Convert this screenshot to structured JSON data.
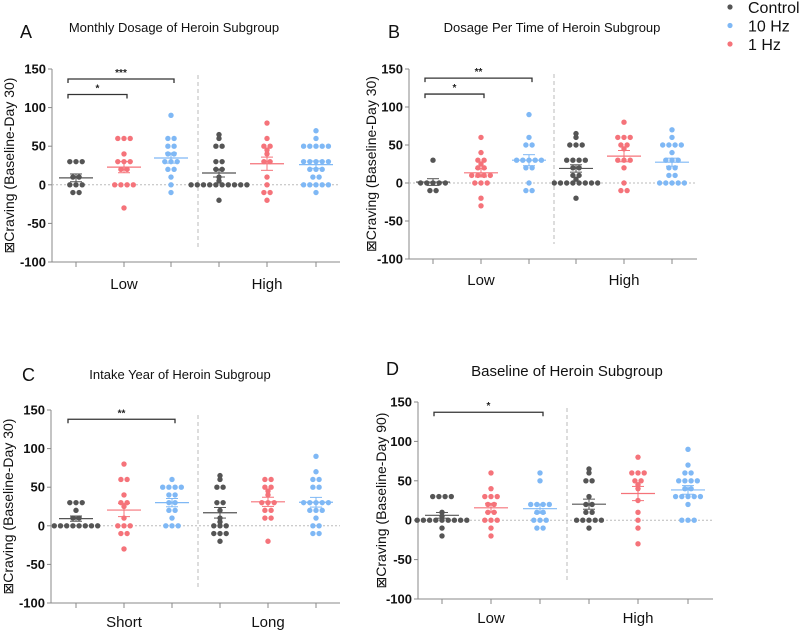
{
  "legend": [
    {
      "label": "Control",
      "color": "#555555"
    },
    {
      "label": "10 Hz",
      "color": "#7fb8f5"
    },
    {
      "label": "1 Hz",
      "color": "#f5737a"
    }
  ],
  "group_colors": {
    "Control": "#555555",
    "1 Hz": "#f5737a",
    "10 Hz": "#7fb8f5"
  },
  "chart_data": [
    {
      "type": "scatter",
      "letter": "A",
      "title": "Monthly Dosage of Heroin Subgroup",
      "ylabel": "⊠Craving (Baseline-Day 30)",
      "ylim": [
        -100,
        150
      ],
      "yticks": [
        "150",
        "100",
        "50",
        "0",
        "-50",
        "-100"
      ],
      "categories": [
        "Low",
        "High"
      ],
      "groups": [
        {
          "category": "Low",
          "series": "Control",
          "values": [
            30,
            30,
            30,
            10,
            10,
            0,
            0,
            0,
            -10,
            -10
          ]
        },
        {
          "category": "Low",
          "series": "1 Hz",
          "values": [
            60,
            60,
            60,
            40,
            30,
            30,
            30,
            20,
            20,
            0,
            0,
            0,
            0,
            -30
          ]
        },
        {
          "category": "Low",
          "series": "10 Hz",
          "values": [
            90,
            60,
            60,
            50,
            50,
            40,
            40,
            30,
            30,
            30,
            20,
            20,
            10,
            0,
            -10
          ]
        },
        {
          "category": "High",
          "series": "Control",
          "values": [
            65,
            60,
            50,
            50,
            30,
            30,
            20,
            20,
            10,
            5,
            0,
            0,
            0,
            0,
            0,
            0,
            0,
            0,
            0,
            0,
            -20
          ]
        },
        {
          "category": "High",
          "series": "1 Hz",
          "values": [
            80,
            60,
            50,
            50,
            45,
            40,
            30,
            30,
            10,
            0,
            -10,
            -10,
            -20
          ]
        },
        {
          "category": "High",
          "series": "10 Hz",
          "values": [
            70,
            60,
            50,
            50,
            50,
            50,
            50,
            30,
            30,
            30,
            30,
            30,
            20,
            20,
            20,
            10,
            10,
            0,
            0,
            0,
            0,
            0,
            -10
          ]
        }
      ],
      "significance": [
        {
          "from": 0,
          "to": 2,
          "y": 137,
          "label": "***"
        },
        {
          "from": 0,
          "to": 1,
          "y": 117,
          "label": "*"
        }
      ]
    },
    {
      "type": "scatter",
      "letter": "B",
      "title": "Dosage Per Time of Heroin Subgroup",
      "ylabel": "⊠Craving (Baseline-Day 30)",
      "ylim": [
        -100,
        150
      ],
      "yticks": [
        "150",
        "100",
        "50",
        "0",
        "-50",
        "-100"
      ],
      "categories": [
        "Low",
        "High"
      ],
      "groups": [
        {
          "category": "Low",
          "series": "Control",
          "values": [
            30,
            0,
            0,
            0,
            0,
            0,
            -10,
            -10
          ]
        },
        {
          "category": "Low",
          "series": "1 Hz",
          "values": [
            60,
            40,
            30,
            30,
            25,
            20,
            20,
            10,
            10,
            10,
            10,
            0,
            0,
            0,
            -20,
            -30
          ]
        },
        {
          "category": "Low",
          "series": "10 Hz",
          "values": [
            90,
            60,
            50,
            50,
            30,
            30,
            30,
            30,
            30,
            20,
            20,
            0,
            -10,
            -10
          ]
        },
        {
          "category": "High",
          "series": "Control",
          "values": [
            65,
            60,
            50,
            50,
            50,
            30,
            30,
            30,
            30,
            20,
            20,
            10,
            10,
            5,
            0,
            0,
            0,
            0,
            0,
            0,
            0,
            0,
            -20
          ]
        },
        {
          "category": "High",
          "series": "1 Hz",
          "values": [
            80,
            60,
            60,
            60,
            50,
            50,
            45,
            30,
            30,
            30,
            20,
            0,
            -10,
            -10
          ]
        },
        {
          "category": "High",
          "series": "10 Hz",
          "values": [
            70,
            60,
            50,
            50,
            50,
            50,
            40,
            30,
            30,
            30,
            20,
            20,
            10,
            10,
            0,
            0,
            0,
            0,
            0
          ]
        }
      ],
      "significance": [
        {
          "from": 0,
          "to": 2,
          "y": 138,
          "label": "**"
        },
        {
          "from": 0,
          "to": 1,
          "y": 117,
          "label": "*"
        }
      ]
    },
    {
      "type": "scatter",
      "letter": "C",
      "title": "Intake Year of Heroin Subgroup",
      "ylabel": "⊠Craving (Baseline-Day 30)",
      "ylim": [
        -100,
        150
      ],
      "yticks": [
        "150",
        "100",
        "50",
        "0",
        "-50",
        "-100"
      ],
      "categories": [
        "Short",
        "Long"
      ],
      "groups": [
        {
          "category": "Short",
          "series": "Control",
          "values": [
            30,
            30,
            30,
            20,
            10,
            10,
            0,
            0,
            0,
            0,
            0,
            0,
            0,
            0
          ]
        },
        {
          "category": "Short",
          "series": "1 Hz",
          "values": [
            80,
            60,
            60,
            40,
            30,
            30,
            25,
            10,
            0,
            0,
            0,
            -10,
            -10,
            -30
          ]
        },
        {
          "category": "Short",
          "series": "10 Hz",
          "values": [
            60,
            50,
            50,
            50,
            50,
            40,
            40,
            30,
            30,
            20,
            20,
            10,
            0,
            0,
            0
          ]
        },
        {
          "category": "Long",
          "series": "Control",
          "values": [
            65,
            60,
            50,
            50,
            30,
            30,
            20,
            10,
            5,
            0,
            0,
            0,
            -10,
            -10,
            -10,
            -20
          ]
        },
        {
          "category": "Long",
          "series": "1 Hz",
          "values": [
            60,
            60,
            50,
            50,
            45,
            40,
            30,
            30,
            30,
            20,
            20,
            10,
            10,
            -20
          ]
        },
        {
          "category": "Long",
          "series": "10 Hz",
          "values": [
            90,
            70,
            60,
            60,
            50,
            50,
            30,
            30,
            30,
            30,
            30,
            20,
            20,
            20,
            10,
            0,
            0,
            -10,
            -10
          ]
        }
      ],
      "significance": [
        {
          "from": 0,
          "to": 2,
          "y": 138,
          "label": "**"
        }
      ]
    },
    {
      "type": "scatter",
      "letter": "D",
      "title": "Baseline of Heroin Subgroup",
      "ylabel": "⊠Craving (Baseline-Day 90)",
      "ylim": [
        -100,
        150
      ],
      "yticks": [
        "150",
        "100",
        "50",
        "0",
        "-50",
        "-100"
      ],
      "categories": [
        "Low",
        "High"
      ],
      "groups": [
        {
          "category": "Low",
          "series": "Control",
          "values": [
            30,
            30,
            30,
            30,
            10,
            5,
            0,
            0,
            0,
            0,
            0,
            0,
            0,
            0,
            0,
            -10,
            -20
          ]
        },
        {
          "category": "Low",
          "series": "1 Hz",
          "values": [
            60,
            40,
            30,
            30,
            30,
            20,
            20,
            10,
            10,
            0,
            0,
            0,
            -10,
            -20
          ]
        },
        {
          "category": "Low",
          "series": "10 Hz",
          "values": [
            60,
            50,
            20,
            20,
            20,
            20,
            10,
            10,
            0,
            0,
            0,
            -10,
            -10
          ]
        },
        {
          "category": "High",
          "series": "Control",
          "values": [
            65,
            60,
            50,
            50,
            30,
            20,
            20,
            10,
            10,
            0,
            0,
            0,
            0,
            0,
            -10
          ]
        },
        {
          "category": "High",
          "series": "1 Hz",
          "values": [
            80,
            60,
            60,
            60,
            50,
            50,
            45,
            40,
            25,
            10,
            0,
            -10,
            -30
          ]
        },
        {
          "category": "High",
          "series": "10 Hz",
          "values": [
            90,
            70,
            60,
            60,
            50,
            50,
            50,
            50,
            40,
            40,
            30,
            30,
            30,
            30,
            30,
            20,
            0,
            0,
            0
          ]
        }
      ],
      "significance": [
        {
          "from": 0,
          "to": 2,
          "y": 137,
          "label": "*"
        }
      ]
    }
  ]
}
